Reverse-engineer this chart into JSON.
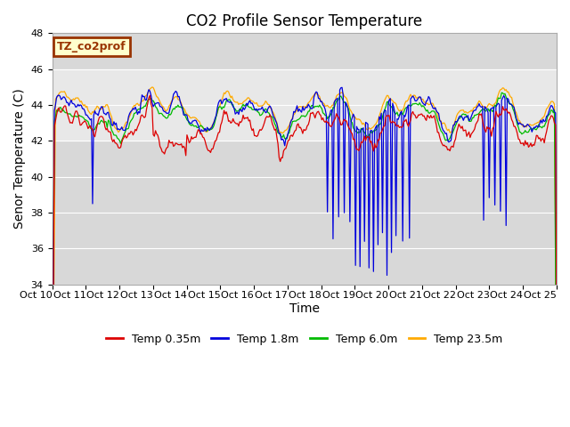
{
  "title": "CO2 Profile Sensor Temperature",
  "ylabel": "Senor Temperature (C)",
  "xlabel": "Time",
  "ylim": [
    34,
    48
  ],
  "yticks": [
    34,
    36,
    38,
    40,
    42,
    44,
    46,
    48
  ],
  "xtick_labels": [
    "Oct 10",
    "Oct 11",
    "Oct 12",
    "Oct 13",
    "Oct 14",
    "Oct 15",
    "Oct 16",
    "Oct 17",
    "Oct 18",
    "Oct 19",
    "Oct 20",
    "Oct 21",
    "Oct 22",
    "Oct 23",
    "Oct 24",
    "Oct 25"
  ],
  "legend_box_label": "TZ_co2prof",
  "legend_box_bg": "#ffffcc",
  "legend_box_edge": "#993300",
  "line_colors": [
    "#dd0000",
    "#0000dd",
    "#00bb00",
    "#ffaa00"
  ],
  "line_labels": [
    "Temp 0.35m",
    "Temp 1.8m",
    "Temp 6.0m",
    "Temp 23.5m"
  ],
  "plot_bg": "#d8d8d8",
  "fig_bg": "#ffffff",
  "shaded_band": [
    42.0,
    46.0
  ],
  "shaded_band_color": "#e8e8e8",
  "grid_color": "#ffffff",
  "title_fontsize": 12,
  "axis_label_fontsize": 10,
  "tick_fontsize": 8,
  "legend_fontsize": 9,
  "n_points": 450
}
